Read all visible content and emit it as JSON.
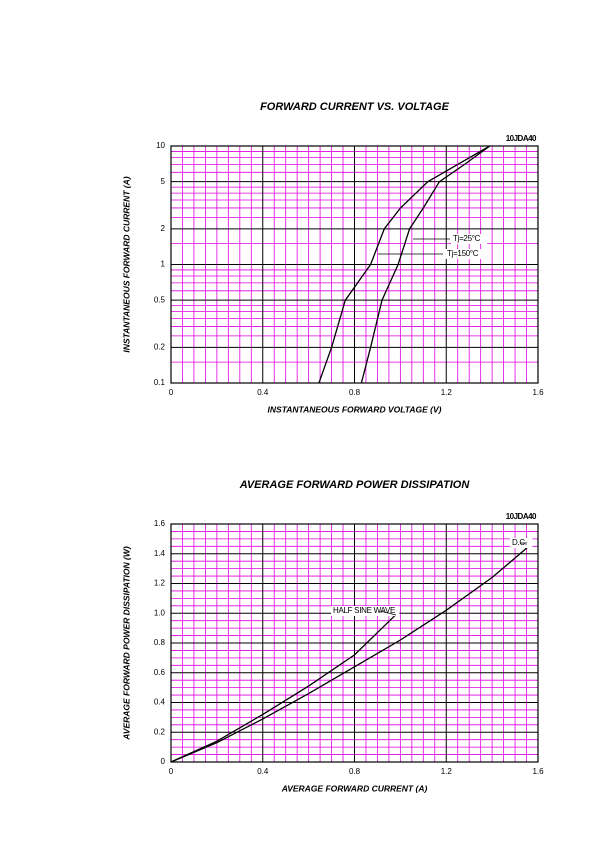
{
  "chart_data": [
    {
      "type": "line",
      "title": "FORWARD CURRENT VS. VOLTAGE",
      "model": "10JDA40",
      "xlabel": "INSTANTANEOUS FORWARD VOLTAGE (V)",
      "ylabel": "INSTANTANEOUS FORWARD CURRENT (A)",
      "log_y": true,
      "grid": true,
      "grid_color": "#e000e0",
      "xlim": [
        0,
        1.6
      ],
      "ylim": [
        0.1,
        10
      ],
      "xticks": [
        0,
        0.4,
        0.8,
        1.2,
        1.6
      ],
      "yticks": [
        0.1,
        0.2,
        0.5,
        1,
        2,
        5,
        10
      ],
      "minor_xticks": [
        0.05,
        0.1,
        0.15,
        0.2,
        0.25,
        0.3,
        0.35,
        0.45,
        0.5,
        0.55,
        0.6,
        0.65,
        0.7,
        0.75,
        0.85,
        0.9,
        0.95,
        1.0,
        1.05,
        1.1,
        1.15,
        1.25,
        1.3,
        1.35,
        1.4,
        1.45,
        1.5,
        1.55
      ],
      "minor_yticks": [
        0.15,
        0.25,
        0.3,
        0.35,
        0.4,
        0.45,
        0.6,
        0.7,
        0.8,
        0.9,
        1.5,
        2.5,
        3,
        3.5,
        4,
        4.5,
        6,
        7,
        8,
        9
      ],
      "series": [
        {
          "name": "Tj=25°C",
          "color": "#000000",
          "x": [
            0.83,
            0.87,
            0.92,
            0.99,
            1.04,
            1.1,
            1.17,
            1.28,
            1.39
          ],
          "values": [
            0.1,
            0.2,
            0.5,
            1,
            2,
            3,
            5,
            7,
            10
          ]
        },
        {
          "name": "Tj=150°C",
          "color": "#000000",
          "x": [
            0.645,
            0.7,
            0.76,
            0.87,
            0.93,
            1.0,
            1.12,
            1.25,
            1.39
          ],
          "values": [
            0.1,
            0.2,
            0.5,
            1,
            2,
            3,
            5,
            7,
            10
          ]
        }
      ]
    },
    {
      "type": "line",
      "title": "AVERAGE FORWARD POWER DISSIPATION",
      "model": "10JDA40",
      "xlabel": "AVERAGE FORWARD CURRENT (A)",
      "ylabel": "AVERAGE FORWARD POWER DISSIPATION (W)",
      "log_y": false,
      "grid": true,
      "grid_color": "#e000e0",
      "xlim": [
        0,
        1.6
      ],
      "ylim": [
        0,
        1.6
      ],
      "xticks": [
        0,
        0.4,
        0.8,
        1.2,
        1.6
      ],
      "yticks": [
        0,
        0.2,
        0.4,
        0.6,
        0.8,
        {
          "value": 1,
          "label": "1.0"
        },
        1.2,
        1.4,
        1.6
      ],
      "minor_xticks": [
        0.05,
        0.1,
        0.15,
        0.2,
        0.25,
        0.3,
        0.35,
        0.45,
        0.5,
        0.55,
        0.6,
        0.65,
        0.7,
        0.75,
        0.85,
        0.9,
        0.95,
        1.0,
        1.05,
        1.1,
        1.15,
        1.25,
        1.3,
        1.35,
        1.4,
        1.45,
        1.5,
        1.55
      ],
      "minor_yticks": [
        0.05,
        0.1,
        0.15,
        0.25,
        0.3,
        0.35,
        0.45,
        0.5,
        0.55,
        0.65,
        0.7,
        0.75,
        0.85,
        0.9,
        0.95,
        1.05,
        1.1,
        1.15,
        1.25,
        1.3,
        1.35,
        1.45,
        1.5,
        1.55
      ],
      "series": [
        {
          "name": "HALF SINE WAVE",
          "color": "#000000",
          "x": [
            0,
            0.2,
            0.4,
            0.6,
            0.8,
            0.98
          ],
          "values": [
            0,
            0.14,
            0.32,
            0.51,
            0.72,
            0.99
          ]
        },
        {
          "name": "D.C.",
          "color": "#000000",
          "x": [
            0,
            0.2,
            0.4,
            0.6,
            0.8,
            1.0,
            1.2,
            1.4,
            1.56
          ],
          "values": [
            0,
            0.13,
            0.29,
            0.46,
            0.64,
            0.82,
            1.02,
            1.24,
            1.45
          ]
        }
      ]
    }
  ]
}
